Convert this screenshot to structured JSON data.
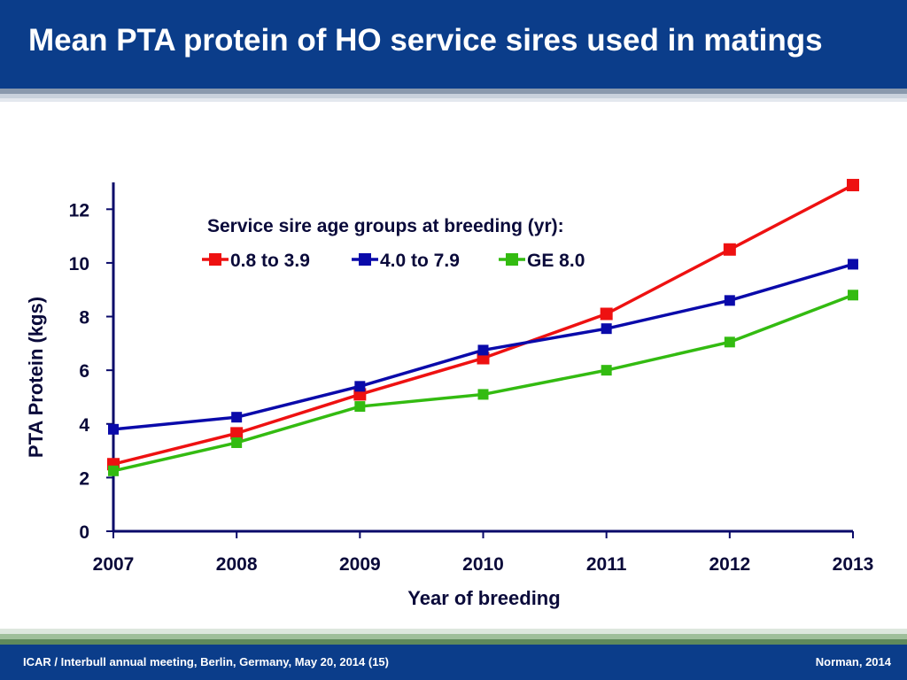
{
  "header": {
    "title": "Mean PTA protein of HO service sires used in matings"
  },
  "footer": {
    "left": "ICAR / Interbull annual meeting, Berlin, Germany, May 20, 2014  (15)",
    "right": "Norman, 2014"
  },
  "chart_data": {
    "type": "line",
    "title": "",
    "legend_title": "Service sire age groups at breeding (yr):",
    "xlabel": "Year of breeding",
    "ylabel": "PTA Protein (kgs)",
    "x": [
      2007,
      2008,
      2009,
      2010,
      2011,
      2012,
      2013
    ],
    "x_tick_labels": [
      "2007",
      "2008",
      "2009",
      "2010",
      "2011",
      "2012",
      "2013"
    ],
    "ylim": [
      0,
      13
    ],
    "y_ticks": [
      0,
      2,
      4,
      6,
      8,
      10,
      12
    ],
    "grid": false,
    "legend_position": "top",
    "series": [
      {
        "name": "0.8 to 3.9",
        "color": "#ee1111",
        "values": [
          2.5,
          3.65,
          5.1,
          6.45,
          8.1,
          10.5,
          12.9
        ]
      },
      {
        "name": "4.0 to 7.9",
        "color": "#0a0aaa",
        "values": [
          3.8,
          4.25,
          5.4,
          6.75,
          7.55,
          8.6,
          9.95
        ]
      },
      {
        "name": "GE 8.0",
        "color": "#33bb11",
        "values": [
          2.25,
          3.3,
          4.65,
          5.1,
          6.0,
          7.05,
          8.8
        ]
      }
    ]
  }
}
